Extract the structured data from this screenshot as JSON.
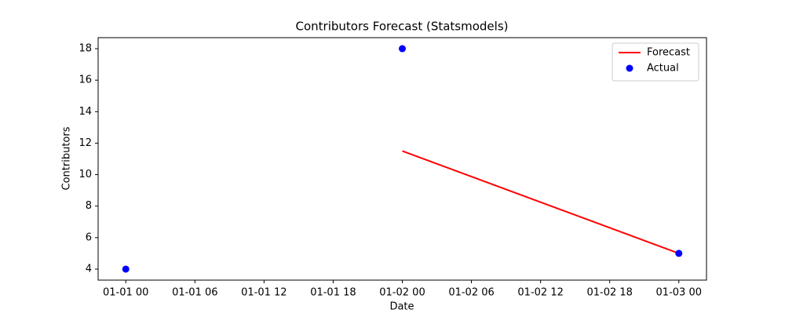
{
  "chart_data": {
    "type": "line-scatter",
    "title": "Contributors Forecast (Statsmodels)",
    "x_label": "Date",
    "y_label": "Contributors",
    "series": [
      {
        "name": "Forecast",
        "kind": "line",
        "color": "#ff0000",
        "x": [
          "01-02 00",
          "01-03 00"
        ],
        "values": [
          11.5,
          5
        ]
      },
      {
        "name": "Actual",
        "kind": "scatter",
        "color": "#0000ff",
        "x": [
          "01-01 00",
          "01-02 00",
          "01-03 00"
        ],
        "values": [
          4,
          18,
          5
        ]
      }
    ],
    "xlim": [
      "12-31 21:36",
      "01-03 02:24"
    ],
    "xticks": [
      "01-01 00",
      "01-01 06",
      "01-01 12",
      "01-01 18",
      "01-02 00",
      "01-02 06",
      "01-02 12",
      "01-02 18",
      "01-03 00"
    ],
    "ylim": [
      3.3,
      18.7
    ],
    "yticks": [
      4,
      6,
      8,
      10,
      12,
      14,
      16,
      18
    ],
    "legend": "upper right",
    "grid": false
  }
}
